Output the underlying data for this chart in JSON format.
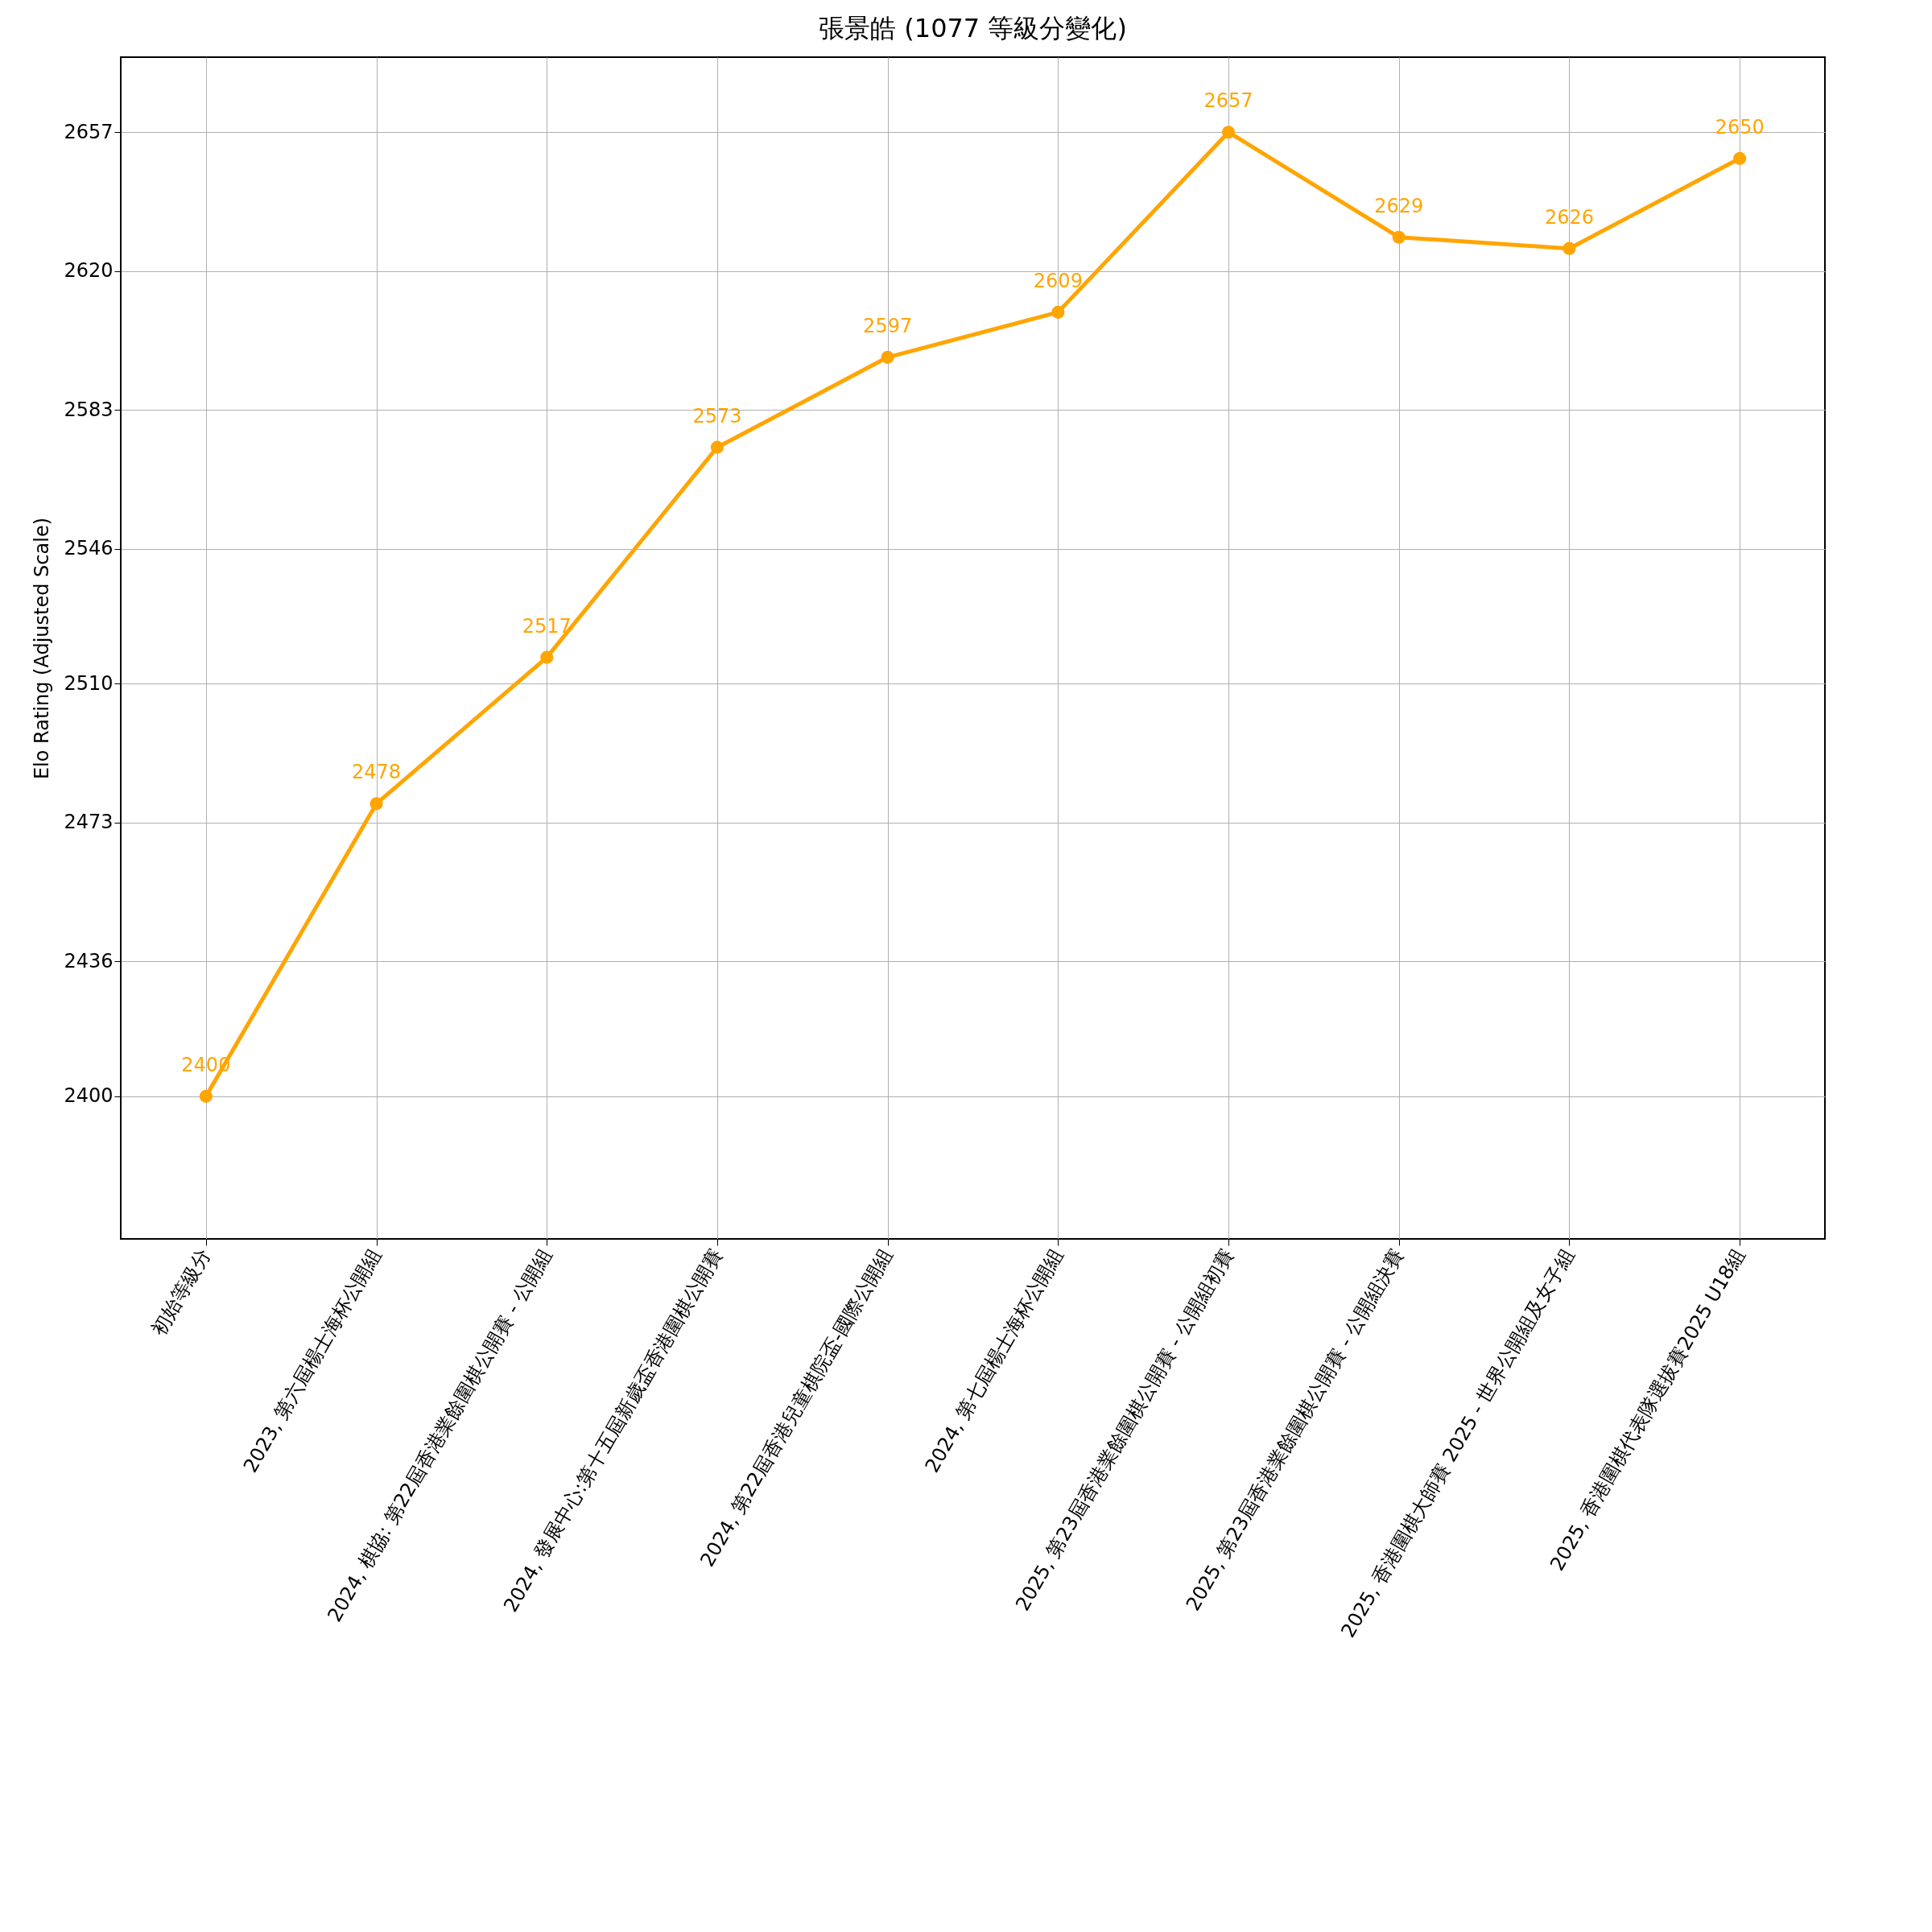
{
  "chart_data": {
    "type": "line",
    "title": "張景皓 (1077 等級分變化)",
    "ylabel": "Elo Rating (Adjusted Scale)",
    "categories": [
      "初始等級分",
      "2023, 第六屆楊士海杯公開組",
      "2024, 棋協: 第22屆香港業餘圍棋公開賽 - 公開組",
      "2024, 發展中心:第十五屆新歲盃香港圍棋公開賽",
      "2024, 第22屆香港兒童棋院盃-國際公開組",
      "2024, 第七屆楊士海杯公開組",
      "2025, 第23屆香港業餘圍棋公開賽 - 公開組初賽",
      "2025, 第23屆香港業餘圍棋公開賽 - 公開組決賽",
      "2025, 香港圍棋大師賽 2025 - 世界公開組及女子組",
      "2025, 香港圍棋代表隊選拔賽2025 U18組"
    ],
    "series": [
      {
        "color": "#ffa500",
        "values": [
          2400,
          2478,
          2517,
          2573,
          2597,
          2609,
          2657,
          2629,
          2626,
          2650
        ]
      }
    ],
    "ylim": [
      2362,
      2677
    ],
    "yticks": [
      2400,
      2436,
      2473,
      2510,
      2546,
      2583,
      2620,
      2657
    ],
    "grid": true,
    "marker": "circle",
    "line_style": "solid",
    "data_labels": true
  }
}
